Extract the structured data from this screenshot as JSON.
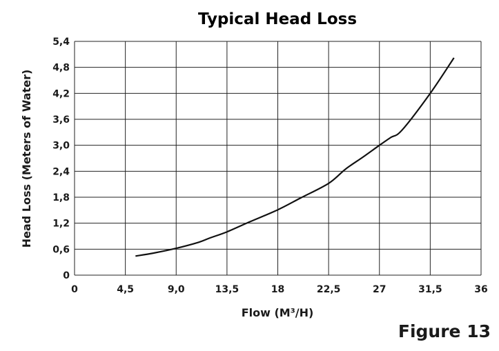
{
  "chart_data": {
    "type": "line",
    "title": "Typical Head Loss",
    "xlabel": "Flow (M³/H)",
    "ylabel": "Head Loss (Meters of Water)",
    "xlim": [
      0,
      36
    ],
    "ylim": [
      0,
      5.4
    ],
    "x_ticks": [
      "0",
      "4,5",
      "9,0",
      "13,5",
      "18",
      "22,5",
      "27",
      "31,5",
      "36"
    ],
    "y_ticks": [
      "0",
      "0,6",
      "1,2",
      "1,8",
      "2,4",
      "3,0",
      "3,6",
      "4,2",
      "4,8",
      "5,4"
    ],
    "grid": true,
    "line_color": "#111111",
    "series": [
      {
        "x": [
          5.4,
          7.0,
          9.0,
          11.0,
          12.0,
          13.5,
          15.5,
          18.0,
          20.0,
          22.5,
          24.0,
          25.5,
          27.0,
          28.0,
          29.0,
          31.5,
          33.6
        ],
        "y": [
          0.44,
          0.51,
          0.62,
          0.76,
          0.86,
          1.0,
          1.23,
          1.51,
          1.78,
          2.12,
          2.45,
          2.72,
          3.0,
          3.18,
          3.35,
          4.2,
          5.02
        ]
      }
    ]
  },
  "figure_label": "Figure 13"
}
